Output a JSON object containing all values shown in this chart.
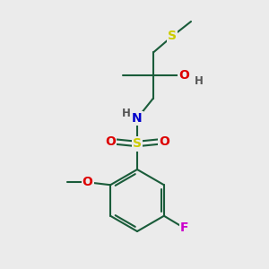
{
  "bg_color": "#ebebeb",
  "bond_color": "#1a5c3a",
  "bond_width": 1.5,
  "atom_colors": {
    "S_thio": "#cccc00",
    "S_sulfonyl": "#cccc00",
    "O": "#dd0000",
    "N": "#0000cc",
    "F": "#cc00cc",
    "H": "#555555",
    "C": "#1a5c3a"
  },
  "font_size_atom": 10,
  "font_size_small": 8.5
}
